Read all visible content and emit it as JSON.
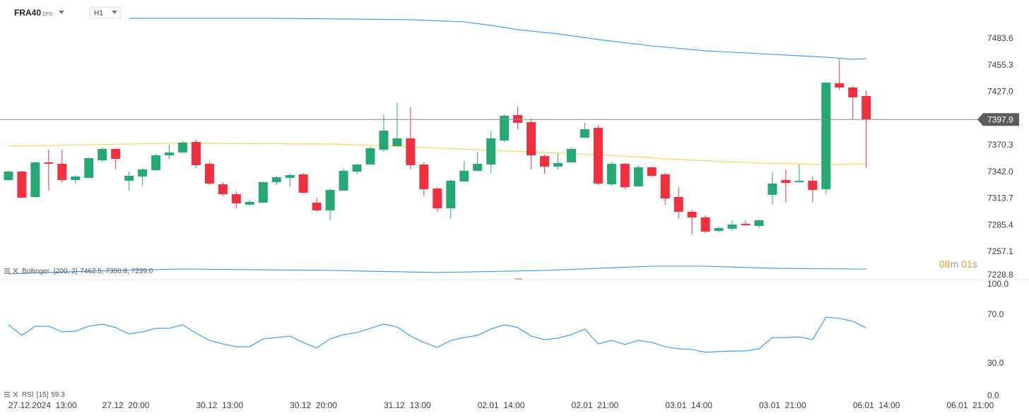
{
  "chart_data": [
    {
      "type": "candlestick",
      "symbol": "FRA40",
      "instrument_type": "CFD",
      "timeframe": "H1",
      "up_color": "#26a874",
      "down_color": "#f0303f",
      "open": [
        7333.6,
        7342.6,
        7315.6,
        7352.4,
        7350.9,
        7333.6,
        7335.9,
        7354.6,
        7366.6,
        7332.9,
        7337.4,
        7344.1,
        7359.9,
        7362.9,
        7374.1,
        7350.9,
        7329.1,
        7318.6,
        7307.4,
        7309.6,
        7331.4,
        7335.9,
        7339.6,
        7309.6,
        7301.4,
        7322.4,
        7342.6,
        7350.1,
        7365.9,
        7369.6,
        7377.9,
        7350.1,
        7324.6,
        7303.6,
        7332.1,
        7343.4,
        7350.1,
        7375.6,
        7402.6,
        7395.1,
        7359.1,
        7347.9,
        7352.4,
        7378.6,
        7389.1,
        7329.1,
        7350.9,
        7326.9,
        7347.1,
        7339.6,
        7315.6,
        7299.9,
        7293.9,
        7279.6,
        7281.9,
        7287.1,
        7284.9,
        7317.9,
        7333.6,
        7331.4,
        7332.9,
        7323.9,
        7436.4,
        7431.9,
        7422.9
      ],
      "high": [
        7343.4,
        7343.4,
        7353.1,
        7365.9,
        7365.9,
        7338.9,
        7357.6,
        7368.1,
        7367.4,
        7342.6,
        7346.4,
        7361.4,
        7371.1,
        7374.9,
        7376.4,
        7353.1,
        7331.4,
        7321.6,
        7311.9,
        7332.1,
        7338.1,
        7340.4,
        7341.1,
        7314.9,
        7324.6,
        7345.6,
        7350.9,
        7368.9,
        7402.6,
        7415.4,
        7410.9,
        7352.4,
        7326.1,
        7334.4,
        7353.9,
        7363.6,
        7385.4,
        7403.4,
        7411.6,
        7398.9,
        7360.6,
        7362.1,
        7368.1,
        7394.4,
        7392.1,
        7352.4,
        7351.6,
        7349.4,
        7347.9,
        7341.1,
        7326.1,
        7302.1,
        7296.1,
        7284.1,
        7290.9,
        7290.9,
        7291.6,
        7341.9,
        7344.9,
        7350.1,
        7337.4,
        7437.1,
        7461.9,
        7433.4,
        7428.9
      ],
      "low": [
        7332.9,
        7314.9,
        7314.9,
        7322.4,
        7330.6,
        7329.9,
        7335.9,
        7353.1,
        7344.9,
        7322.4,
        7327.6,
        7343.4,
        7356.1,
        7362.9,
        7346.4,
        7328.4,
        7316.4,
        7303.6,
        7306.6,
        7308.9,
        7328.4,
        7326.1,
        7319.4,
        7299.9,
        7290.9,
        7322.4,
        7339.6,
        7350.1,
        7363.6,
        7369.6,
        7344.9,
        7316.4,
        7299.9,
        7292.4,
        7332.1,
        7343.4,
        7341.1,
        7373.4,
        7387.6,
        7344.9,
        7340.4,
        7344.9,
        7352.4,
        7378.6,
        7328.4,
        7327.6,
        7323.9,
        7326.9,
        7336.6,
        7307.4,
        7292.4,
        7275.9,
        7277.4,
        7278.1,
        7279.6,
        7285.6,
        7282.6,
        7307.4,
        7309.6,
        7331.4,
        7310.4,
        7318.6,
        7428.9,
        7397.4,
        7347.1
      ],
      "close": [
        7342.6,
        7314.9,
        7352.4,
        7350.9,
        7333.6,
        7337.4,
        7356.9,
        7366.6,
        7356.1,
        7338.1,
        7344.9,
        7359.9,
        7362.9,
        7373.4,
        7349.4,
        7329.9,
        7318.6,
        7308.9,
        7310.4,
        7331.4,
        7336.6,
        7338.9,
        7320.1,
        7301.4,
        7323.1,
        7343.4,
        7350.1,
        7367.4,
        7386.1,
        7377.9,
        7349.4,
        7323.9,
        7303.6,
        7332.9,
        7343.4,
        7350.9,
        7377.9,
        7401.9,
        7394.4,
        7359.9,
        7347.9,
        7351.6,
        7366.6,
        7387.6,
        7329.9,
        7350.9,
        7326.1,
        7347.1,
        7338.1,
        7314.1,
        7299.9,
        7293.9,
        7278.9,
        7282.6,
        7286.4,
        7285.6,
        7290.9,
        7329.9,
        7330.6,
        7332.9,
        7323.1,
        7437.1,
        7431.9,
        7421.4,
        7397.9
      ],
      "series": [
        {
          "color": "#2f95e8",
          "x": [
            9,
            20,
            30,
            34,
            36,
            38,
            41,
            44,
            48,
            52,
            57,
            61,
            63,
            64
          ],
          "values": [
            7505.4,
            7505.4,
            7503.9,
            7501.6,
            7497.9,
            7493.4,
            7488.9,
            7482.9,
            7476.1,
            7470.9,
            7467.1,
            7464.1,
            7461.9,
            7462.5
          ]
        },
        {
          "color": "#f3d34a",
          "x": [
            0,
            6,
            12,
            24,
            30,
            36,
            44,
            50,
            56,
            61,
            64
          ],
          "values": [
            7369.6,
            7371.1,
            7372.6,
            7371.9,
            7368.9,
            7365.1,
            7360.6,
            7355.4,
            7351.6,
            7350.1,
            7350.8
          ]
        },
        {
          "color": "#2f95e8",
          "x": [
            0,
            6,
            13,
            24,
            32,
            40,
            48,
            52,
            57,
            64
          ],
          "values": [
            7233.9,
            7236.9,
            7239.1,
            7237.6,
            7235.4,
            7237.6,
            7242.1,
            7242.1,
            7239.9,
            7239.0
          ]
        }
      ],
      "indicator_name": "Bollinger",
      "indicator_params": "[200, 2]",
      "indicator_readout": "7462.5,  7350.8,  7239.0",
      "current_price": 7397.9,
      "countdown": {
        "minutes": "08",
        "minutes_unit": "m",
        "seconds": "01",
        "seconds_unit": "s"
      },
      "ylim": [
        7227.85,
        7524.85
      ],
      "yticks": [
        7483.6,
        7455.3,
        {
          "value": 7427,
          "label": "7427.0"
        },
        7370.3,
        {
          "value": 7342,
          "label": "7342.0"
        },
        7313.7,
        7285.4,
        7257.1,
        7228.8
      ],
      "xlim": [
        -0.63,
        72.4
      ],
      "xticks": [
        {
          "value": 0,
          "label": "27.12.2024  13:00"
        },
        {
          "value": 7,
          "label": "27.12  20:00"
        },
        {
          "value": 14,
          "label": "30.12  13:00"
        },
        {
          "value": 21,
          "label": "30.12  20:00"
        },
        {
          "value": 28,
          "label": "31.12  13:00"
        },
        {
          "value": 35,
          "label": "02.01  14:00"
        },
        {
          "value": 42,
          "label": "02.01  21:00"
        },
        {
          "value": 49,
          "label": "03.01  14:00"
        },
        {
          "value": 56,
          "label": "03.01  21:00"
        },
        {
          "value": 63,
          "label": "06.01  14:00"
        },
        {
          "value": 70,
          "label": "06.01  21:00"
        }
      ]
    },
    {
      "type": "line",
      "name": "RSI",
      "params": "[15]",
      "color": "#2f95e8",
      "values": [
        61.9,
        53.2,
        60.7,
        60.7,
        56.1,
        56.7,
        60.7,
        62.5,
        59.6,
        54.3,
        56.1,
        59.0,
        59.0,
        61.9,
        54.9,
        49.1,
        46.2,
        43.9,
        43.9,
        50.3,
        51.4,
        52.6,
        47.4,
        42.8,
        50.3,
        53.8,
        55.5,
        59.0,
        62.5,
        60.1,
        52.6,
        47.4,
        43.3,
        49.1,
        51.4,
        53.2,
        58.4,
        61.9,
        59.6,
        52.6,
        49.7,
        50.9,
        53.8,
        58.4,
        46.2,
        49.1,
        45.7,
        49.1,
        47.4,
        43.9,
        42.2,
        41.6,
        39.3,
        39.9,
        40.4,
        40.4,
        42.2,
        51.4,
        51.4,
        52.0,
        49.7,
        68.3,
        67.1,
        64.8,
        59.3
      ],
      "ylim": [
        0,
        100
      ],
      "yticks": [
        {
          "value": 100,
          "label": "100.0"
        },
        {
          "value": 70,
          "label": "70.0"
        },
        {
          "value": 30,
          "label": "30.0"
        },
        {
          "value": 0,
          "label": "0.0"
        }
      ]
    }
  ]
}
